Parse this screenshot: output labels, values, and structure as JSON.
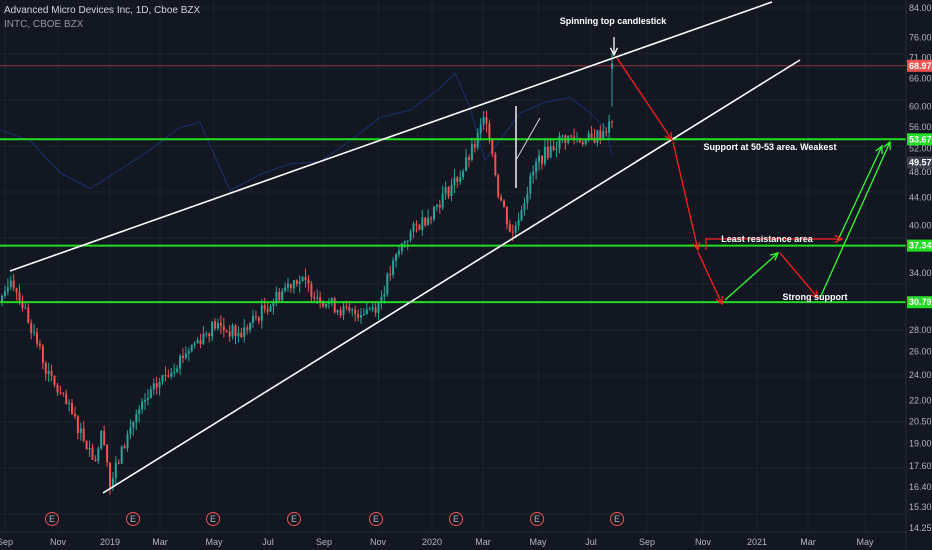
{
  "header": {
    "title": "Advanced Micro Devices Inc, 1D, Cboe BZX",
    "compare": "INTC, CBOE BZX"
  },
  "colors": {
    "background": "#131722",
    "up": "#26a69a",
    "down": "#ef5350",
    "support": "#22dd22",
    "trend": "#ffffff",
    "projection_down": "#ff1e1e",
    "projection_up": "#33ff33",
    "price_tag": "#ef5350",
    "compare_line": "#2962ff"
  },
  "chart_data": {
    "type": "candlestick",
    "symbol": "AMD",
    "compare_symbol": "INTC",
    "y_scale": "log",
    "ylim": [
      14.8,
      88
    ],
    "y_ticks": [
      "84.00",
      "76.00",
      "71.00",
      "66.00",
      "60.00",
      "56.00",
      "52.00",
      "48.00",
      "44.00",
      "40.00",
      "37.00",
      "34.00",
      "31.00",
      "28.00",
      "26.00",
      "24.00",
      "22.00",
      "20.50",
      "19.00",
      "17.60",
      "16.40",
      "15.30",
      "14.25"
    ],
    "x_ticks": [
      "Sep",
      "Nov",
      "2019",
      "Mar",
      "May",
      "Jul",
      "Sep",
      "Nov",
      "2020",
      "Mar",
      "May",
      "Jul",
      "Sep",
      "Nov",
      "2021",
      "Mar",
      "May"
    ],
    "earnings_markers": [
      "E",
      "E",
      "E",
      "E",
      "E",
      "E",
      "E",
      "E"
    ],
    "price_levels": [
      {
        "value": 68.97,
        "label": "68.97",
        "role": "last price"
      },
      {
        "value": 53.67,
        "label": "53.67",
        "role": "support"
      },
      {
        "value": 49.57,
        "label": "49.57",
        "role": "compare"
      },
      {
        "value": 37.34,
        "label": "37.34",
        "role": "resistance"
      },
      {
        "value": 30.79,
        "label": "30.79",
        "role": "support"
      }
    ],
    "price_anchors": [
      {
        "x": "Sep 2018",
        "y": 30
      },
      {
        "x": "Sep 2018 peak",
        "y": 33.8
      },
      {
        "x": "Oct 2018",
        "y": 24
      },
      {
        "x": "Nov 2018",
        "y": 18
      },
      {
        "x": "Dec 2018",
        "y": 20
      },
      {
        "x": "Dec 2018 low",
        "y": 16.4
      },
      {
        "x": "Jan 2019",
        "y": 20.5
      },
      {
        "x": "Feb 2019",
        "y": 23.5
      },
      {
        "x": "Mar 2019",
        "y": 26
      },
      {
        "x": "Apr 2019",
        "y": 28.5
      },
      {
        "x": "May 2019",
        "y": 27.5
      },
      {
        "x": "Jun 2019",
        "y": 30.5
      },
      {
        "x": "Jul 2019",
        "y": 33.5
      },
      {
        "x": "Aug 2019",
        "y": 31
      },
      {
        "x": "Sep 2019",
        "y": 29.5
      },
      {
        "x": "Oct 2019",
        "y": 30.5
      },
      {
        "x": "Nov 2019",
        "y": 38
      },
      {
        "x": "Dec 2019",
        "y": 42
      },
      {
        "x": "Jan 2020",
        "y": 48
      },
      {
        "x": "Feb 2020",
        "y": 53
      },
      {
        "x": "Feb 2020 high",
        "y": 58.5
      },
      {
        "x": "Mar 2020",
        "y": 45
      },
      {
        "x": "Mar 2020 low",
        "y": 38.5
      },
      {
        "x": "Apr 2020",
        "y": 50
      },
      {
        "x": "May 2020",
        "y": 54
      },
      {
        "x": "Jun 2020",
        "y": 53.5
      },
      {
        "x": "Jul 2020",
        "y": 56.5
      },
      {
        "x": "Jul 2020 jump",
        "y": 69
      }
    ],
    "annotations": [
      "Spinning top candlestick",
      "Support at 50-53 area. Weakest",
      "Least resistance area",
      "Strong support"
    ],
    "grid": true
  }
}
